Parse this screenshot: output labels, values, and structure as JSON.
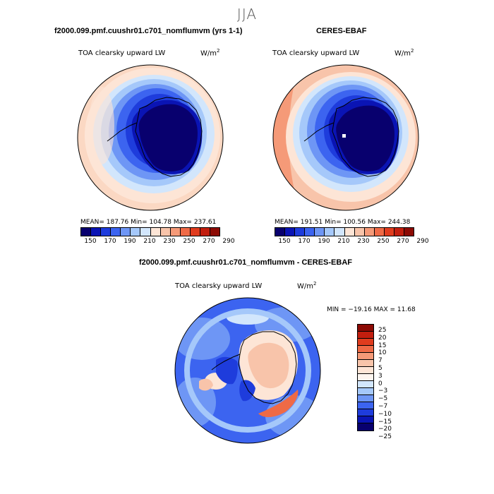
{
  "figure": {
    "season": "JJA"
  },
  "panels": {
    "model": {
      "title": "f2000.099.pmf.cuushr01.c701_nomflumvm (yrs 1-1)",
      "variable": "TOA clearsky upward LW",
      "units": "W/m",
      "units_exp": "2",
      "stats": "MEAN= 187.76   Min= 104.78   Max= 237.61"
    },
    "obs": {
      "title": "CERES-EBAF",
      "variable": "TOA clearsky upward LW",
      "units": "W/m",
      "units_exp": "2",
      "stats": "MEAN= 191.51   Min= 100.56   Max= 244.38"
    },
    "diff": {
      "title": "f2000.099.pmf.cuushr01.c701_nomflumvm - CERES-EBAF",
      "variable": "TOA clearsky upward LW",
      "units": "W/m",
      "units_exp": "2",
      "stats": "MIN = −19.16  MAX =   11.68"
    }
  },
  "colorbar_abs": {
    "ticks": [
      "150",
      "170",
      "190",
      "210",
      "230",
      "250",
      "270",
      "290"
    ],
    "colors": [
      "#08006e",
      "#0a14b4",
      "#1e3cdc",
      "#3c64f0",
      "#6e96f5",
      "#a5c8fa",
      "#d2e6fc",
      "#fde5d6",
      "#f8c4aa",
      "#f59a78",
      "#ef6a46",
      "#e03c1e",
      "#c21e0e",
      "#8c0a04"
    ]
  },
  "colorbar_diff": {
    "labels": [
      "25",
      "20",
      "15",
      "10",
      "7",
      "5",
      "3",
      "0",
      "−3",
      "−5",
      "−7",
      "−10",
      "−15",
      "−20",
      "−25"
    ],
    "colors": [
      "#8c0a04",
      "#c21e0e",
      "#e03c1e",
      "#ef6a46",
      "#f59a78",
      "#f8c4aa",
      "#fde5d6",
      "#fdf5ef",
      "#d2e6fc",
      "#a5c8fa",
      "#6e96f5",
      "#3c64f0",
      "#1e3cdc",
      "#0a14b4",
      "#08006e"
    ]
  }
}
